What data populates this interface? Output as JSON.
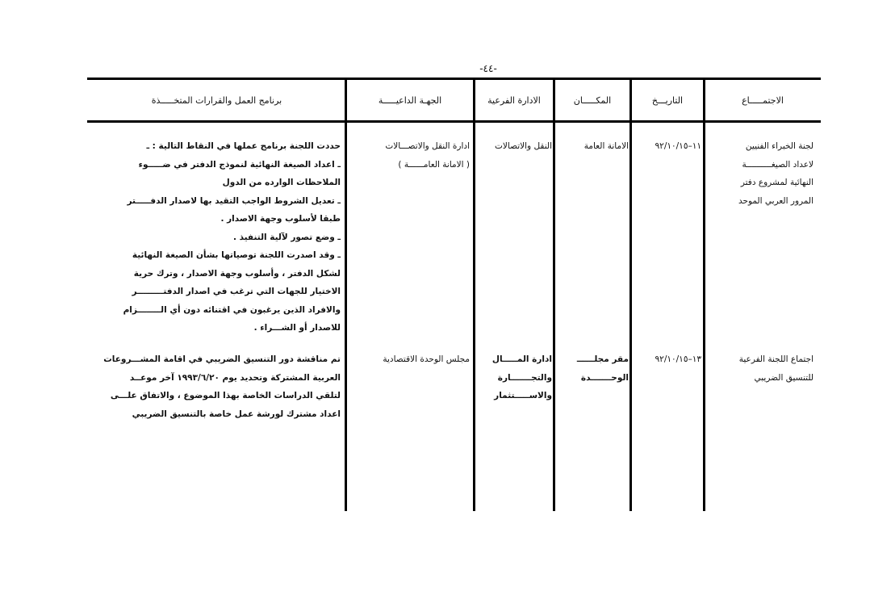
{
  "page_number": "-٤٤-",
  "table": {
    "headers": [
      "الاجتمـــــاع",
      "التاريـــخ",
      "المكـــــان",
      "الادارة الفرعية",
      "الجهـة الداعيـــــة",
      "برنامج العمل والقرارات المتخـــــذة"
    ],
    "rows": [
      {
        "meeting": [
          "لجنة الخبراء الفنيين",
          "لاعداد الصيغــــــــــة",
          "النهائية لمشروع دفتر",
          "المرور العربي الموحد"
        ],
        "date": [
          "١١–٩٢/١٠/١٥"
        ],
        "place": [
          "الامانة العامة"
        ],
        "sub_department": [
          "النقل والاتصالات"
        ],
        "inviting_party": [
          "ادارة النقل والاتصـــالات",
          "( الامانة العامــــــة )"
        ],
        "program": [
          "حددت اللجنة برنامج عملها في النقاط التالية : ـ",
          "ـ اعداد الصيغة النهائية لنموذج الدفتر في ضـــــوء",
          "الملاحظات الوارده من الدول",
          "ـ تعديل الشروط الواجب التقيد بها لاصدار الدفـــــتر",
          "طبقا لأسلوب وجهة الاصدار .",
          "ـ وضع تصور لآلية التنفيذ .",
          "ـ وقد اصدرت اللجنة توصياتها بشأن الصيغة النهائية",
          "لشكل الدفتر ، وأسلوب وجهة الاصدار ، وترك حرية",
          "الاختيار للجهات التي ترغب في اصدار الدفتـــــــــر",
          "والافراد الذين يرغبون في اقتنائه دون أي الــــــــزام",
          "للاصدار أو الشـــراء ."
        ]
      },
      {
        "meeting": [
          "اجتماع اللجنة الفرعية",
          "للتنسيق الضريبي"
        ],
        "date": [
          "١٣–٩٢/١٠/١٥"
        ],
        "place": [
          "مقر مجلــــــ",
          "الوحـــــــدة"
        ],
        "sub_department": [
          "ادارة المـــــال",
          "والتجـــــــارة",
          "والاســـــتثمار"
        ],
        "inviting_party": [
          "مجلس الوحدة الاقتصادية"
        ],
        "program": [
          "تم مناقشة دور التنسيق الضريبي في اقامة المشـــروعات",
          "العربية المشتركة وتحديد يوم ١٩٩٣/٦/٢٠ آخر موعــد",
          "لتلقي الدراسات الخاصة بهذا الموضوع ، والاتفاق علـــى",
          "اعداد مشترك لورشة عمل خاصة بالتنسيق الضريبي"
        ]
      }
    ]
  }
}
